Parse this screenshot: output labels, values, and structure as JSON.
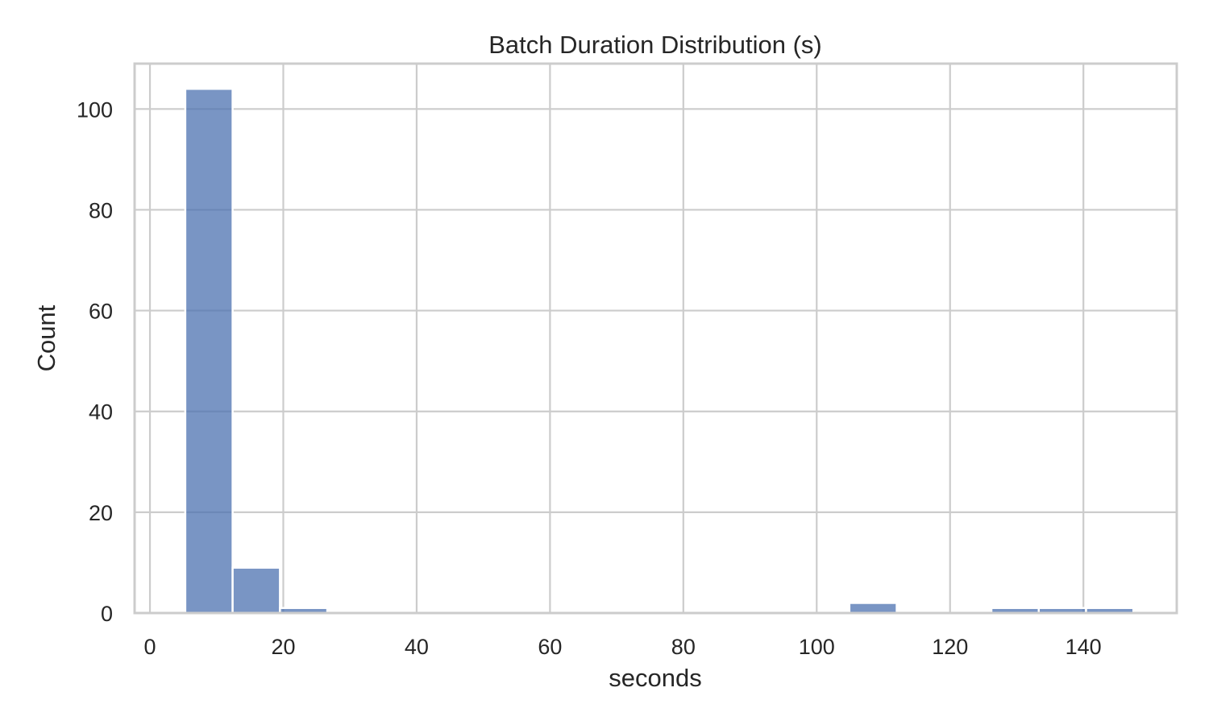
{
  "chart_data": {
    "type": "bar",
    "title": "Batch Duration Distribution (s)",
    "xlabel": "seconds",
    "ylabel": "Count",
    "xlim": [
      -2.3,
      154
    ],
    "ylim": [
      0,
      109
    ],
    "xticks": [
      0,
      20,
      40,
      60,
      80,
      100,
      120,
      140
    ],
    "yticks": [
      0,
      20,
      40,
      60,
      80,
      100
    ],
    "grid": true,
    "bar_color": "#4c72b0",
    "bins": [
      {
        "start": 5.3,
        "end": 12.4,
        "count": 104
      },
      {
        "start": 12.4,
        "end": 19.5,
        "count": 9
      },
      {
        "start": 19.5,
        "end": 26.6,
        "count": 1
      },
      {
        "start": 104.9,
        "end": 112.0,
        "count": 2
      },
      {
        "start": 126.2,
        "end": 133.3,
        "count": 1
      },
      {
        "start": 133.3,
        "end": 140.4,
        "count": 1
      },
      {
        "start": 140.4,
        "end": 147.5,
        "count": 1
      }
    ]
  }
}
